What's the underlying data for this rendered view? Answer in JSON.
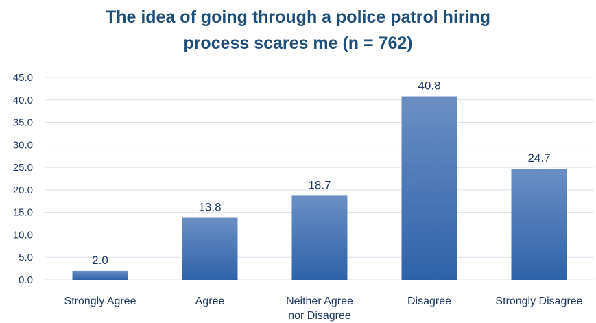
{
  "chart_data": {
    "type": "bar",
    "title": "The idea of going through a police patrol hiring process scares me (n = 762)",
    "title_lines": [
      "The idea of going through a police patrol hiring",
      "process scares me (n = 762)"
    ],
    "categories": [
      "Strongly Agree",
      "Agree",
      "Neither Agree nor Disagree",
      "Disagree",
      "Strongly Disagree"
    ],
    "category_lines": [
      [
        "Strongly Agree"
      ],
      [
        "Agree"
      ],
      [
        "Neither Agree",
        "nor Disagree"
      ],
      [
        "Disagree"
      ],
      [
        "Strongly Disagree"
      ]
    ],
    "values": [
      2.0,
      13.8,
      18.7,
      40.8,
      24.7
    ],
    "data_labels": [
      "2.0",
      "13.8",
      "18.7",
      "40.8",
      "24.7"
    ],
    "yticks": [
      "0.0",
      "5.0",
      "10.0",
      "15.0",
      "20.0",
      "25.0",
      "30.0",
      "35.0",
      "40.0",
      "45.0"
    ],
    "ylim": [
      0,
      45
    ],
    "xlabel": "",
    "ylabel": "",
    "grid": true,
    "legend": "none",
    "colors": {
      "bar_top": "#6a8fc4",
      "bar_bottom": "#2f63a8",
      "title": "#1f4e79",
      "text": "#1f3864",
      "grid": "#d9e1ee"
    }
  }
}
